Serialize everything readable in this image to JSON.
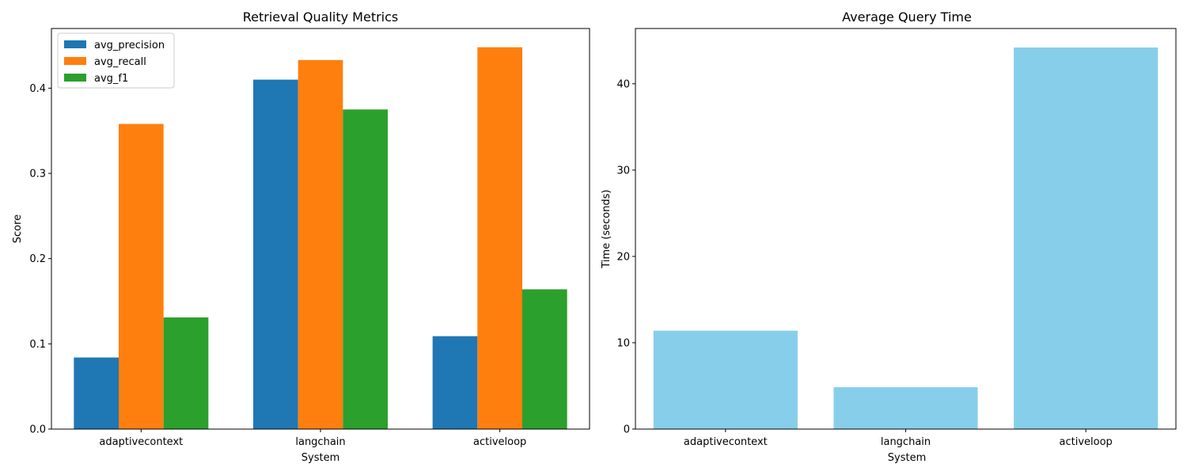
{
  "chart_data": [
    {
      "type": "bar",
      "title": "Retrieval Quality Metrics",
      "xlabel": "System",
      "ylabel": "Score",
      "categories": [
        "adaptivecontext",
        "langchain",
        "activeloop"
      ],
      "series": [
        {
          "name": "avg_precision",
          "color": "#1f77b4",
          "values": [
            0.084,
            0.41,
            0.109
          ]
        },
        {
          "name": "avg_recall",
          "color": "#ff7f0e",
          "values": [
            0.358,
            0.433,
            0.448
          ]
        },
        {
          "name": "avg_f1",
          "color": "#2ca02c",
          "values": [
            0.131,
            0.375,
            0.164
          ]
        }
      ],
      "ylim": [
        0,
        0.47
      ],
      "yticks": [
        0.0,
        0.1,
        0.2,
        0.3,
        0.4
      ],
      "ytick_labels": [
        "0.0",
        "0.1",
        "0.2",
        "0.3",
        "0.4"
      ],
      "legend": "top-left",
      "grid": false
    },
    {
      "type": "bar",
      "title": "Average Query Time",
      "xlabel": "System",
      "ylabel": "Time (seconds)",
      "categories": [
        "adaptivecontext",
        "langchain",
        "activeloop"
      ],
      "series": [
        {
          "color": "#87ceeb",
          "values": [
            11.4,
            4.85,
            44.2
          ]
        }
      ],
      "ylim": [
        0,
        46.4
      ],
      "yticks": [
        0,
        10,
        20,
        30,
        40
      ],
      "ytick_labels": [
        "0",
        "10",
        "20",
        "30",
        "40"
      ],
      "grid": false
    }
  ]
}
